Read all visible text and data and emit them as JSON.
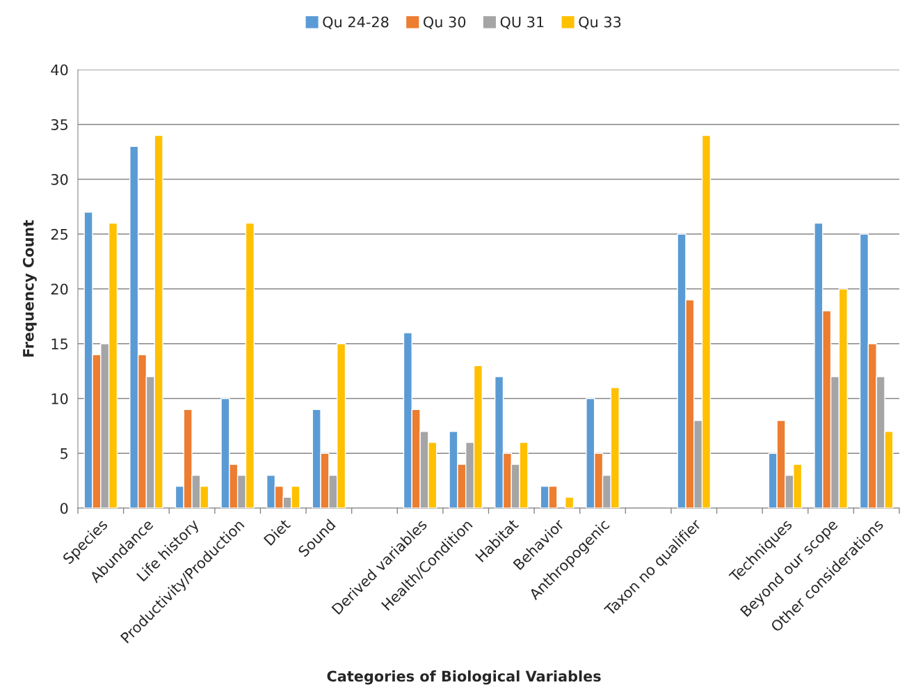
{
  "chart_data": {
    "type": "bar",
    "xlabel": "Categories of Biological Variables",
    "ylabel": "Frequency Count",
    "categories": [
      "Species",
      "Abundance",
      "Life history",
      "Productivity/Production",
      "Diet",
      "Sound",
      null,
      "Derived variables",
      "Health/Condition",
      "Habitat",
      "Behavior",
      "Anthropogenic",
      null,
      "Taxon no qualifier",
      null,
      "Techniques",
      "Beyond our scope",
      "Other considerations"
    ],
    "series": [
      {
        "name": "Qu 24-28",
        "color": "#5b9bd5",
        "values": [
          27,
          33,
          2,
          10,
          3,
          9,
          null,
          16,
          7,
          12,
          2,
          10,
          null,
          25,
          null,
          5,
          26,
          25
        ]
      },
      {
        "name": "Qu 30",
        "color": "#ed7d31",
        "values": [
          14,
          14,
          9,
          4,
          2,
          5,
          null,
          9,
          4,
          5,
          2,
          5,
          null,
          19,
          null,
          8,
          18,
          15
        ]
      },
      {
        "name": "QU 31",
        "color": "#a5a5a5",
        "values": [
          15,
          12,
          3,
          3,
          1,
          3,
          null,
          7,
          6,
          4,
          null,
          3,
          null,
          8,
          null,
          3,
          12,
          12
        ]
      },
      {
        "name": "Qu 33",
        "color": "#ffc000",
        "values": [
          26,
          34,
          2,
          26,
          2,
          15,
          null,
          6,
          13,
          6,
          1,
          11,
          null,
          34,
          null,
          4,
          20,
          7
        ]
      }
    ],
    "ylim": [
      0,
      40
    ],
    "yticks": [
      0,
      5,
      10,
      15,
      20,
      25,
      30,
      35,
      40
    ],
    "grid": "y",
    "legend": "top"
  }
}
